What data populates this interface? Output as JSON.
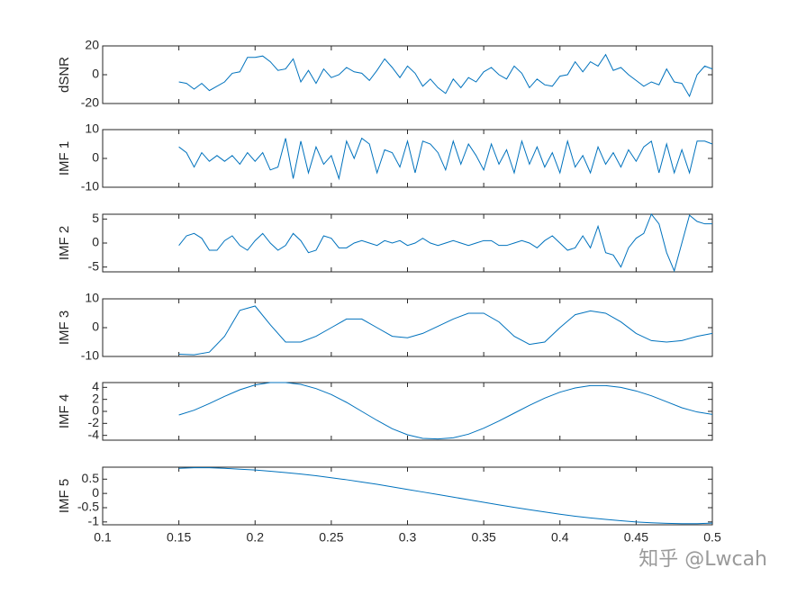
{
  "chart_data": [
    {
      "type": "line",
      "ylabel": "dSNR",
      "color": "#0072bd",
      "xlim": [
        0.1,
        0.5
      ],
      "ylim": [
        -20,
        20
      ],
      "yticks": [
        -20,
        0,
        20
      ],
      "x": [
        0.15,
        0.155,
        0.16,
        0.165,
        0.17,
        0.175,
        0.18,
        0.185,
        0.19,
        0.195,
        0.2,
        0.205,
        0.21,
        0.215,
        0.22,
        0.225,
        0.23,
        0.235,
        0.24,
        0.245,
        0.25,
        0.255,
        0.26,
        0.265,
        0.27,
        0.275,
        0.28,
        0.285,
        0.29,
        0.295,
        0.3,
        0.305,
        0.31,
        0.315,
        0.32,
        0.325,
        0.33,
        0.335,
        0.34,
        0.345,
        0.35,
        0.355,
        0.36,
        0.365,
        0.37,
        0.375,
        0.38,
        0.385,
        0.39,
        0.395,
        0.4,
        0.405,
        0.41,
        0.415,
        0.42,
        0.425,
        0.43,
        0.435,
        0.44,
        0.445,
        0.45,
        0.455,
        0.46,
        0.465,
        0.47,
        0.475,
        0.48,
        0.485,
        0.49,
        0.495,
        0.5
      ],
      "values": [
        -5,
        -6,
        -10,
        -6,
        -11,
        -8,
        -5,
        1,
        2,
        12,
        12,
        13,
        9,
        3,
        4,
        11,
        -5,
        3,
        -6,
        4,
        -2,
        0,
        5,
        2,
        1,
        -4,
        3,
        11,
        5,
        -2,
        6,
        1,
        -8,
        -3,
        -9,
        -13,
        -3,
        -9,
        -2,
        -5,
        2,
        5,
        0,
        -3,
        6,
        1,
        -9,
        -3,
        -7,
        -8,
        -1,
        0,
        9,
        2,
        9,
        6,
        14,
        3,
        5,
        0,
        -4,
        -8,
        -5,
        -7,
        4,
        -5,
        -6,
        -15,
        0,
        6,
        4
      ]
    },
    {
      "type": "line",
      "ylabel": "IMF 1",
      "color": "#0072bd",
      "xlim": [
        0.1,
        0.5
      ],
      "ylim": [
        -10,
        10
      ],
      "yticks": [
        -10,
        0,
        10
      ],
      "x": [
        0.15,
        0.155,
        0.16,
        0.165,
        0.17,
        0.175,
        0.18,
        0.185,
        0.19,
        0.195,
        0.2,
        0.205,
        0.21,
        0.215,
        0.22,
        0.225,
        0.23,
        0.235,
        0.24,
        0.245,
        0.25,
        0.255,
        0.26,
        0.265,
        0.27,
        0.275,
        0.28,
        0.285,
        0.29,
        0.295,
        0.3,
        0.305,
        0.31,
        0.315,
        0.32,
        0.325,
        0.33,
        0.335,
        0.34,
        0.345,
        0.35,
        0.355,
        0.36,
        0.365,
        0.37,
        0.375,
        0.38,
        0.385,
        0.39,
        0.395,
        0.4,
        0.405,
        0.41,
        0.415,
        0.42,
        0.425,
        0.43,
        0.435,
        0.44,
        0.445,
        0.45,
        0.455,
        0.46,
        0.465,
        0.47,
        0.475,
        0.48,
        0.485,
        0.49,
        0.495,
        0.5
      ],
      "values": [
        4,
        2,
        -3,
        2,
        -1,
        1,
        -1,
        1,
        -2,
        2,
        -1,
        2,
        -4,
        -3,
        7,
        -7,
        6,
        -5,
        4,
        -2,
        1,
        -7,
        6,
        0,
        7,
        5,
        -5,
        3,
        2,
        -3,
        6,
        -5,
        6,
        5,
        2,
        -4,
        6,
        -2,
        5,
        1,
        -4,
        5,
        -2,
        3,
        -5,
        6,
        -2,
        4,
        -3,
        2,
        -5,
        6,
        -3,
        1,
        -5,
        4,
        -2,
        2,
        -3,
        3,
        -1,
        4,
        6,
        -5,
        5,
        -5,
        3,
        -5,
        6,
        6,
        5
      ]
    },
    {
      "type": "line",
      "ylabel": "IMF 2",
      "color": "#0072bd",
      "xlim": [
        0.1,
        0.5
      ],
      "ylim": [
        -6,
        6
      ],
      "yticks": [
        -5,
        0,
        5
      ],
      "x": [
        0.15,
        0.155,
        0.16,
        0.165,
        0.17,
        0.175,
        0.18,
        0.185,
        0.19,
        0.195,
        0.2,
        0.205,
        0.21,
        0.215,
        0.22,
        0.225,
        0.23,
        0.235,
        0.24,
        0.245,
        0.25,
        0.255,
        0.26,
        0.265,
        0.27,
        0.275,
        0.28,
        0.285,
        0.29,
        0.295,
        0.3,
        0.305,
        0.31,
        0.315,
        0.32,
        0.325,
        0.33,
        0.335,
        0.34,
        0.345,
        0.35,
        0.355,
        0.36,
        0.365,
        0.37,
        0.375,
        0.38,
        0.385,
        0.39,
        0.395,
        0.4,
        0.405,
        0.41,
        0.415,
        0.42,
        0.425,
        0.43,
        0.435,
        0.44,
        0.445,
        0.45,
        0.455,
        0.46,
        0.465,
        0.47,
        0.475,
        0.48,
        0.485,
        0.49,
        0.495,
        0.5
      ],
      "values": [
        -0.5,
        1.5,
        2,
        1,
        -1.5,
        -1.5,
        0.5,
        1.5,
        -0.5,
        -1.5,
        0.5,
        2,
        0,
        -1.5,
        -0.5,
        2,
        0.5,
        -2,
        -1.5,
        1.5,
        1,
        -1,
        -1,
        0,
        0.5,
        0,
        -0.5,
        0.5,
        0,
        0.5,
        -0.5,
        0,
        1,
        0,
        -0.5,
        0,
        0.5,
        0,
        -0.5,
        0,
        0.5,
        0.5,
        -0.5,
        -0.5,
        0,
        0.5,
        0,
        -1,
        0.5,
        1.5,
        0,
        -1.5,
        -1,
        1.5,
        -1,
        3.5,
        -2,
        -2.5,
        -5,
        -1,
        1,
        2,
        6,
        4,
        -2,
        -5.8,
        0,
        5.8,
        4.5,
        4,
        4
      ]
    },
    {
      "type": "line",
      "ylabel": "IMF 3",
      "color": "#0072bd",
      "xlim": [
        0.1,
        0.5
      ],
      "ylim": [
        -10,
        10
      ],
      "yticks": [
        -10,
        0,
        10
      ],
      "x": [
        0.15,
        0.16,
        0.17,
        0.18,
        0.19,
        0.2,
        0.21,
        0.22,
        0.23,
        0.24,
        0.25,
        0.26,
        0.27,
        0.28,
        0.29,
        0.3,
        0.31,
        0.32,
        0.33,
        0.34,
        0.35,
        0.36,
        0.37,
        0.38,
        0.39,
        0.4,
        0.41,
        0.42,
        0.43,
        0.44,
        0.45,
        0.46,
        0.47,
        0.48,
        0.49,
        0.5
      ],
      "values": [
        -9.2,
        -9.4,
        -8.5,
        -3,
        6,
        7.5,
        1,
        -5,
        -5,
        -3,
        0,
        3,
        3,
        0,
        -3,
        -3.5,
        -2,
        0.5,
        3,
        5,
        5,
        2,
        -3,
        -5.8,
        -5,
        0,
        4.5,
        5.8,
        5,
        2,
        -2,
        -4.5,
        -5,
        -4.5,
        -3,
        -2
      ]
    },
    {
      "type": "line",
      "ylabel": "IMF 4",
      "color": "#0072bd",
      "xlim": [
        0.1,
        0.5
      ],
      "ylim": [
        -4.8,
        4.8
      ],
      "yticks": [
        -4,
        -2,
        0,
        2,
        4
      ],
      "x": [
        0.15,
        0.16,
        0.17,
        0.18,
        0.19,
        0.2,
        0.21,
        0.22,
        0.23,
        0.24,
        0.25,
        0.26,
        0.27,
        0.28,
        0.29,
        0.3,
        0.31,
        0.32,
        0.33,
        0.34,
        0.35,
        0.36,
        0.37,
        0.38,
        0.39,
        0.4,
        0.41,
        0.42,
        0.43,
        0.44,
        0.45,
        0.46,
        0.47,
        0.48,
        0.49,
        0.5
      ],
      "values": [
        -0.6,
        0.2,
        1.3,
        2.5,
        3.6,
        4.4,
        4.8,
        4.8,
        4.5,
        3.8,
        2.8,
        1.5,
        0,
        -1.5,
        -2.9,
        -3.9,
        -4.5,
        -4.6,
        -4.4,
        -3.8,
        -2.8,
        -1.6,
        -0.3,
        1,
        2.2,
        3.2,
        3.9,
        4.3,
        4.3,
        4,
        3.4,
        2.6,
        1.6,
        0.6,
        -0.1,
        -0.5
      ]
    },
    {
      "type": "line",
      "ylabel": "IMF 5",
      "color": "#0072bd",
      "xlim": [
        0.1,
        0.5
      ],
      "ylim": [
        -1.1,
        0.92
      ],
      "yticks": [
        -1,
        -0.5,
        0,
        0.5
      ],
      "xticks": [
        0.1,
        0.15,
        0.2,
        0.25,
        0.3,
        0.35,
        0.4,
        0.45,
        0.5
      ],
      "x": [
        0.15,
        0.16,
        0.17,
        0.18,
        0.19,
        0.2,
        0.21,
        0.22,
        0.23,
        0.24,
        0.25,
        0.26,
        0.27,
        0.28,
        0.29,
        0.3,
        0.31,
        0.32,
        0.33,
        0.34,
        0.35,
        0.36,
        0.37,
        0.38,
        0.39,
        0.4,
        0.41,
        0.42,
        0.43,
        0.44,
        0.45,
        0.46,
        0.47,
        0.48,
        0.49,
        0.5
      ],
      "values": [
        0.88,
        0.9,
        0.9,
        0.88,
        0.85,
        0.82,
        0.78,
        0.73,
        0.68,
        0.62,
        0.55,
        0.48,
        0.4,
        0.32,
        0.23,
        0.14,
        0.05,
        -0.04,
        -0.13,
        -0.22,
        -0.31,
        -0.4,
        -0.49,
        -0.57,
        -0.65,
        -0.73,
        -0.8,
        -0.86,
        -0.91,
        -0.96,
        -1,
        -1.03,
        -1.05,
        -1.06,
        -1.06,
        -1.04
      ]
    }
  ],
  "watermark": "知乎 @Lwcah"
}
